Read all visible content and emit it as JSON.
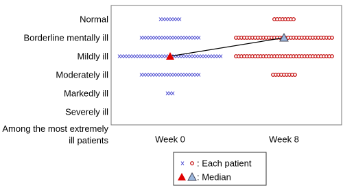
{
  "chart_data": {
    "type": "strip",
    "categories": [
      "Week 0",
      "Week 8"
    ],
    "y_categories": [
      "Normal",
      "Borderline mentally ill",
      "Mildly ill",
      "Moderately ill",
      "Markedly ill",
      "Severely ill",
      "Among the most extremely ill patients"
    ],
    "series": [
      {
        "name": "Week 0",
        "color": "#4a4ad0",
        "marker": "x",
        "values": [
          8,
          22,
          38,
          22,
          3,
          0,
          0
        ]
      },
      {
        "name": "Week 8",
        "color": "#c00000",
        "marker": "circle",
        "values": [
          8,
          36,
          36,
          9,
          0,
          0,
          0
        ]
      }
    ],
    "median": {
      "values": [
        2,
        1
      ],
      "colors": [
        "#e00000",
        "#9bb7dd"
      ]
    },
    "legend": [
      ": Each patient",
      ": Median"
    ]
  }
}
